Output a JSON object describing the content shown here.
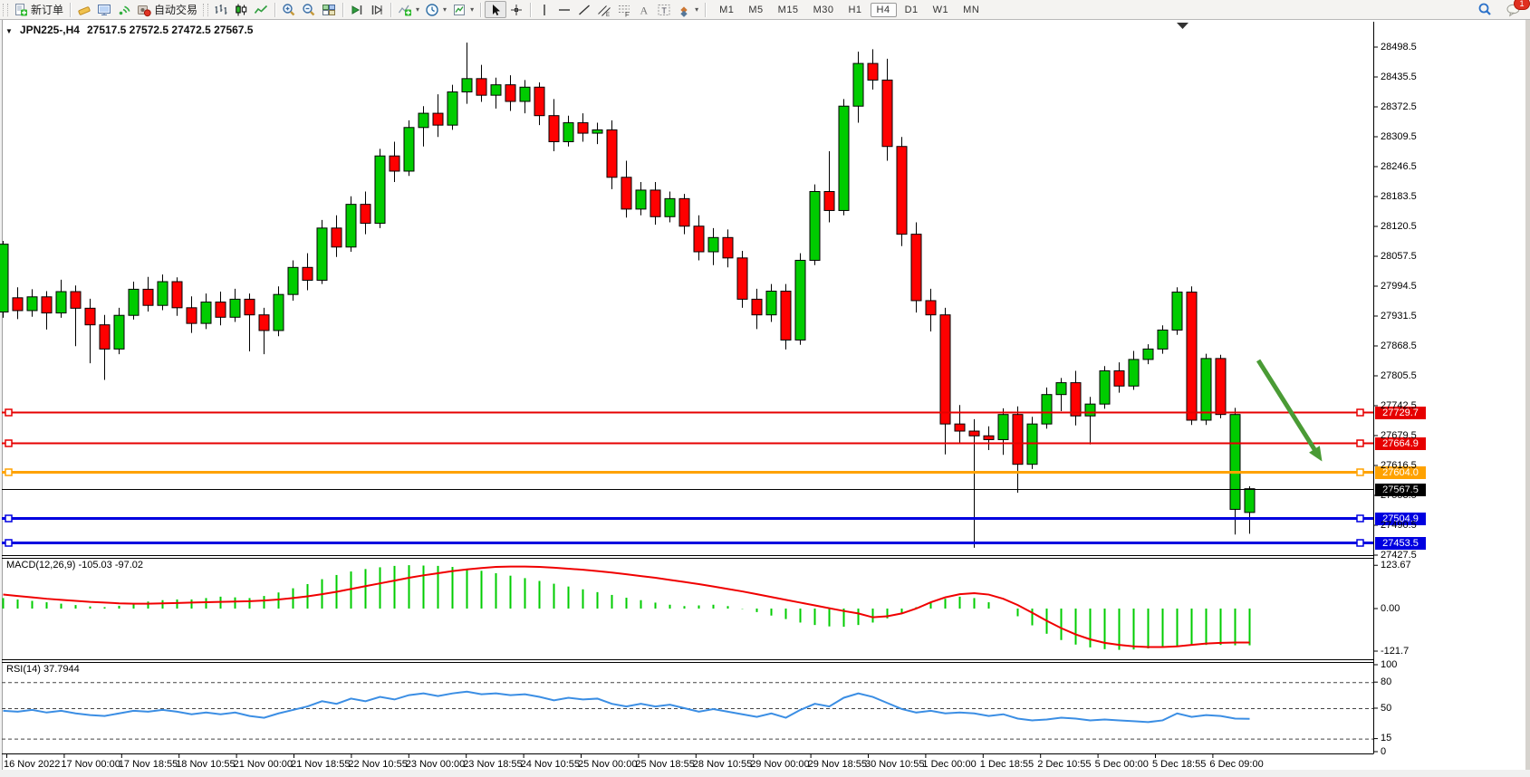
{
  "toolbar": {
    "new_order_label": "新订单",
    "autotrading_label": "自动交易",
    "timeframes": [
      "M1",
      "M5",
      "M15",
      "M30",
      "H1",
      "H4",
      "D1",
      "W1",
      "MN"
    ],
    "active_timeframe": "H4",
    "notification_badge": "1"
  },
  "chart": {
    "symbol_title": "JPN225-,H4",
    "ohlc_text": "27517.5 27572.5 27472.5 27567.5",
    "macd_label": "MACD(12,26,9) -105.03 -97.02",
    "rsi_label": "RSI(14) 37.7944"
  },
  "colors": {
    "bull": "#00cc00",
    "bear": "#ff0000",
    "candle_outline": "#000000",
    "macd_hist": "#00cc00",
    "macd_signal": "#f00000",
    "rsi_line": "#3b8ee4",
    "arrow": "#4a9b35",
    "red_line": "#e60000",
    "orange_line": "#ffa200",
    "blue_line": "#0000e0",
    "bid_line": "#000000"
  },
  "chart_data": {
    "type": "candlestick+indicators",
    "symbol": "JPN225-",
    "timeframe": "H4",
    "title_ohlc": {
      "open": 27517.5,
      "high": 27572.5,
      "low": 27472.5,
      "close": 27567.5
    },
    "price_axis_ticks": [
      28498.5,
      28435.5,
      28372.5,
      28309.5,
      28246.5,
      28183.5,
      28120.5,
      28057.5,
      27994.5,
      27931.5,
      27868.5,
      27805.5,
      27742.5,
      27679.5,
      27616.5,
      27553.5,
      27490.5,
      27427.5
    ],
    "price_axis_range": [
      27427.5,
      28498.5
    ],
    "hlines": [
      {
        "price": 27729.7,
        "label": "27729.7",
        "color": "#e60000",
        "width": 2,
        "anchors": true
      },
      {
        "price": 27664.9,
        "label": "27664.9",
        "color": "#e60000",
        "width": 2,
        "anchors": true
      },
      {
        "price": 27604.0,
        "label": "27604.0",
        "color": "#ffa200",
        "width": 3,
        "anchors": true
      },
      {
        "price": 27567.5,
        "label": "27567.5",
        "color": "#000000",
        "width": 1,
        "anchors": false
      },
      {
        "price": 27504.9,
        "label": "27504.9",
        "color": "#0000e0",
        "width": 3,
        "anchors": true
      },
      {
        "price": 27453.5,
        "label": "27453.5",
        "color": "#0000e0",
        "width": 3,
        "anchors": true
      }
    ],
    "time_labels": [
      "16 Nov 2022",
      "17 Nov 00:00",
      "17 Nov 18:55",
      "18 Nov 10:55",
      "21 Nov 00:00",
      "21 Nov 18:55",
      "22 Nov 10:55",
      "23 Nov 00:00",
      "23 Nov 18:55",
      "24 Nov 10:55",
      "25 Nov 00:00",
      "25 Nov 18:55",
      "28 Nov 10:55",
      "29 Nov 00:00",
      "29 Nov 18:55",
      "30 Nov 10:55",
      "1 Dec 00:00",
      "1 Dec 18:55",
      "2 Dec 10:55",
      "5 Dec 00:00",
      "5 Dec 18:55",
      "6 Dec 09:00"
    ],
    "candles_ohlc": [
      [
        27940,
        28090,
        27928,
        28083
      ],
      [
        27970,
        27992,
        27925,
        27943
      ],
      [
        27943,
        27988,
        27930,
        27972
      ],
      [
        27972,
        27984,
        27903,
        27938
      ],
      [
        27938,
        28008,
        27928,
        27983
      ],
      [
        27983,
        27996,
        27868,
        27948
      ],
      [
        27948,
        27968,
        27832,
        27913
      ],
      [
        27913,
        27934,
        27797,
        27862
      ],
      [
        27862,
        27949,
        27851,
        27933
      ],
      [
        27933,
        28004,
        27924,
        27988
      ],
      [
        27988,
        28014,
        27941,
        27954
      ],
      [
        27954,
        28019,
        27944,
        28004
      ],
      [
        28004,
        28013,
        27932,
        27949
      ],
      [
        27949,
        27973,
        27896,
        27916
      ],
      [
        27916,
        27979,
        27904,
        27961
      ],
      [
        27961,
        27983,
        27912,
        27929
      ],
      [
        27929,
        27989,
        27919,
        27967
      ],
      [
        27967,
        27979,
        27857,
        27934
      ],
      [
        27934,
        27949,
        27851,
        27901
      ],
      [
        27901,
        27994,
        27889,
        27977
      ],
      [
        27977,
        28049,
        27964,
        28034
      ],
      [
        28034,
        28064,
        27986,
        28007
      ],
      [
        28007,
        28134,
        27999,
        28117
      ],
      [
        28117,
        28144,
        28056,
        28077
      ],
      [
        28077,
        28184,
        28067,
        28167
      ],
      [
        28167,
        28194,
        28104,
        28127
      ],
      [
        28127,
        28284,
        28117,
        28269
      ],
      [
        28269,
        28299,
        28214,
        28237
      ],
      [
        28237,
        28344,
        28227,
        28329
      ],
      [
        28329,
        28374,
        28289,
        28359
      ],
      [
        28359,
        28399,
        28309,
        28334
      ],
      [
        28334,
        28419,
        28324,
        28404
      ],
      [
        28404,
        28508,
        28379,
        28432
      ],
      [
        28432,
        28461,
        28383,
        28397
      ],
      [
        28397,
        28434,
        28369,
        28419
      ],
      [
        28419,
        28439,
        28364,
        28384
      ],
      [
        28384,
        28429,
        28359,
        28414
      ],
      [
        28414,
        28424,
        28334,
        28354
      ],
      [
        28354,
        28389,
        28279,
        28299
      ],
      [
        28299,
        28354,
        28289,
        28339
      ],
      [
        28339,
        28359,
        28299,
        28317
      ],
      [
        28317,
        28339,
        28294,
        28324
      ],
      [
        28324,
        28344,
        28199,
        28224
      ],
      [
        28224,
        28259,
        28139,
        28157
      ],
      [
        28157,
        28214,
        28144,
        28197
      ],
      [
        28197,
        28214,
        28124,
        28141
      ],
      [
        28141,
        28194,
        28129,
        28179
      ],
      [
        28179,
        28189,
        28104,
        28121
      ],
      [
        28121,
        28144,
        28049,
        28067
      ],
      [
        28067,
        28117,
        28039,
        28097
      ],
      [
        28097,
        28114,
        28034,
        28054
      ],
      [
        28054,
        28069,
        27949,
        27967
      ],
      [
        27967,
        27989,
        27904,
        27934
      ],
      [
        27934,
        27999,
        27919,
        27984
      ],
      [
        27984,
        27999,
        27861,
        27881
      ],
      [
        27881,
        28064,
        27871,
        28049
      ],
      [
        28049,
        28209,
        28039,
        28194
      ],
      [
        28194,
        28279,
        28129,
        28154
      ],
      [
        28154,
        28389,
        28144,
        28374
      ],
      [
        28374,
        28489,
        28339,
        28464
      ],
      [
        28464,
        28494,
        28409,
        28429
      ],
      [
        28429,
        28474,
        28259,
        28289
      ],
      [
        28289,
        28309,
        28079,
        28104
      ],
      [
        28104,
        28129,
        27939,
        27964
      ],
      [
        27964,
        27989,
        27899,
        27934
      ],
      [
        27934,
        27949,
        27640,
        27704
      ],
      [
        27704,
        27744,
        27664,
        27689
      ],
      [
        27689,
        27714,
        27443,
        27679
      ],
      [
        27679,
        27699,
        27649,
        27671
      ],
      [
        27671,
        27737,
        27639,
        27724
      ],
      [
        27724,
        27741,
        27559,
        27619
      ],
      [
        27619,
        27719,
        27609,
        27704
      ],
      [
        27704,
        27781,
        27694,
        27766
      ],
      [
        27766,
        27801,
        27731,
        27791
      ],
      [
        27791,
        27816,
        27701,
        27721
      ],
      [
        27721,
        27761,
        27661,
        27746
      ],
      [
        27746,
        27826,
        27736,
        27816
      ],
      [
        27816,
        27834,
        27770,
        27784
      ],
      [
        27784,
        27858,
        27776,
        27840
      ],
      [
        27840,
        27872,
        27830,
        27862
      ],
      [
        27862,
        27912,
        27852,
        27902
      ],
      [
        27902,
        27992,
        27892,
        27982
      ],
      [
        27982,
        27994,
        27702,
        27712
      ],
      [
        27712,
        27852,
        27702,
        27842
      ],
      [
        27842,
        27850,
        27716,
        27724
      ],
      [
        27524,
        27738,
        27471,
        27724
      ],
      [
        27517.5,
        27572.5,
        27472.5,
        27567.5
      ]
    ],
    "macd": {
      "label": "MACD(12,26,9) -105.03 -97.02",
      "main_value": -105.03,
      "signal_value": -97.02,
      "axis_ticks": [
        "123.67",
        "0.00",
        "-121.7"
      ],
      "histogram": [
        30,
        26,
        22,
        18,
        14,
        10,
        6,
        4,
        8,
        14,
        20,
        24,
        26,
        26,
        30,
        34,
        32,
        30,
        36,
        46,
        58,
        70,
        84,
        96,
        106,
        113,
        118,
        122,
        124,
        123,
        122,
        119,
        114,
        108,
        101,
        94,
        87,
        79,
        71,
        63,
        55,
        47,
        39,
        31,
        24,
        17,
        11,
        7,
        9,
        11,
        7,
        -1,
        -10,
        -20,
        -30,
        -40,
        -47,
        -51,
        -52,
        -47,
        -40,
        -28,
        -14,
        4,
        18,
        28,
        34,
        30,
        18,
        0,
        -22,
        -48,
        -72,
        -90,
        -103,
        -111,
        -116,
        -118,
        -117,
        -114,
        -111,
        -108,
        -106,
        -104,
        -104,
        -105,
        -105.03
      ],
      "signal": [
        40,
        36,
        32,
        28,
        25,
        22,
        19,
        17,
        15,
        14,
        14,
        15,
        16,
        17,
        18,
        19,
        20,
        21,
        23,
        26,
        30,
        35,
        41,
        48,
        56,
        64,
        72,
        80,
        88,
        95,
        101,
        107,
        112,
        116,
        119,
        120,
        120,
        119,
        117,
        114,
        111,
        107,
        103,
        98,
        93,
        88,
        82,
        76,
        70,
        63,
        56,
        49,
        41,
        33,
        25,
        17,
        9,
        1,
        -7,
        -14,
        -25,
        -22,
        -14,
        0,
        18,
        32,
        41,
        44,
        40,
        28,
        10,
        -12,
        -35,
        -56,
        -74,
        -88,
        -98,
        -104,
        -108,
        -110,
        -110,
        -108,
        -104,
        -100,
        -98,
        -97,
        -97.02
      ]
    },
    "rsi": {
      "label": "RSI(14) 37.7944",
      "current_value": 37.7944,
      "axis_ticks": [
        "100",
        "80",
        "50",
        "15",
        "0"
      ],
      "levels": [
        80,
        50,
        15
      ],
      "values": [
        47,
        46,
        48,
        45,
        47,
        44,
        42,
        41,
        44,
        47,
        46,
        48,
        46,
        43,
        45,
        43,
        45,
        41,
        39,
        44,
        48,
        52,
        58,
        55,
        61,
        58,
        63,
        60,
        65,
        67,
        64,
        67,
        69,
        66,
        67,
        65,
        66,
        63,
        59,
        62,
        60,
        61,
        55,
        52,
        55,
        52,
        54,
        50,
        46,
        49,
        46,
        43,
        40,
        44,
        39,
        48,
        55,
        52,
        62,
        67,
        63,
        56,
        49,
        45,
        47,
        44,
        45,
        44,
        41,
        43,
        38,
        36,
        37,
        39,
        38,
        36,
        37,
        36,
        35,
        34,
        36,
        44,
        40,
        42,
        41,
        38,
        37.8
      ],
      "grid": "dashed horizontal levels"
    },
    "arrow_annotation": {
      "from_bar": 86.6,
      "from_price": 27838,
      "to_bar": 91.0,
      "to_price": 27625,
      "color": "#4a9b35"
    },
    "legend_position": "none",
    "grid": "off in price pane"
  }
}
